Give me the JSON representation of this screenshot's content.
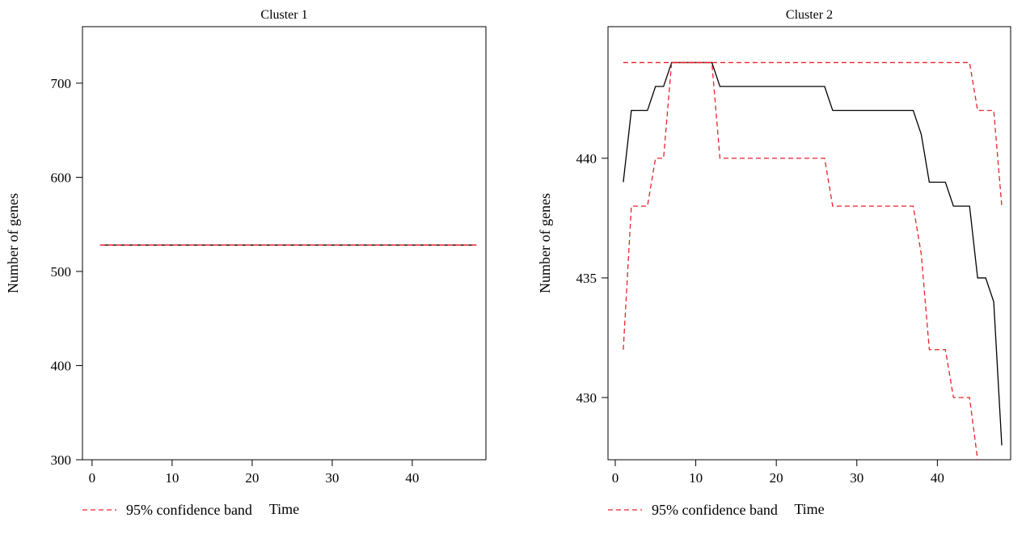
{
  "chart_data": [
    {
      "type": "line",
      "title": "Cluster 1",
      "xlabel": "Time",
      "ylabel": "Number of genes",
      "xlim": [
        -1.2,
        49.2
      ],
      "ylim": [
        300,
        760
      ],
      "xticks": [
        0,
        10,
        20,
        30,
        40
      ],
      "yticks": [
        300,
        400,
        500,
        600,
        700
      ],
      "grid": false,
      "legend": {
        "position": "bottom-left",
        "entries": [
          {
            "label": "95% confidence band",
            "style": "dashed",
            "color": "#e8202a"
          }
        ]
      },
      "series": [
        {
          "role": "estimate",
          "color": "#000000",
          "style": "solid",
          "x": [
            1,
            48
          ],
          "y": [
            528,
            528
          ]
        },
        {
          "role": "band-upper",
          "color": "#e8202a",
          "style": "dashed",
          "x": [
            1,
            48
          ],
          "y": [
            528,
            528
          ]
        },
        {
          "role": "band-lower",
          "color": "#e8202a",
          "style": "dashed",
          "x": [
            1,
            48
          ],
          "y": [
            528,
            528
          ]
        }
      ]
    },
    {
      "type": "line",
      "title": "Cluster 2",
      "xlabel": "Time",
      "ylabel": "Number of genes",
      "xlim": [
        -0.9,
        49.1
      ],
      "ylim": [
        427.4,
        445.5
      ],
      "xticks": [
        0,
        10,
        20,
        30,
        40
      ],
      "yticks": [
        430,
        435,
        440
      ],
      "grid": false,
      "legend": {
        "position": "bottom-left",
        "entries": [
          {
            "label": "95% confidence band",
            "style": "dashed",
            "color": "#e8202a"
          }
        ]
      },
      "series": [
        {
          "role": "estimate",
          "color": "#000000",
          "style": "solid",
          "x": [
            1,
            2,
            3,
            4,
            5,
            6,
            7,
            8,
            9,
            10,
            11,
            12,
            13,
            26,
            27,
            37,
            38,
            39,
            41,
            42,
            44,
            45,
            46,
            47,
            48
          ],
          "y": [
            439,
            442,
            442,
            442,
            443,
            443,
            444,
            444,
            444,
            444,
            444,
            444,
            443,
            443,
            442,
            442,
            441,
            439,
            439,
            438,
            438,
            435,
            435,
            434,
            428
          ]
        },
        {
          "role": "band-upper",
          "color": "#e8202a",
          "style": "dashed",
          "x": [
            1,
            44,
            45,
            47,
            48
          ],
          "y": [
            444,
            444,
            442,
            442,
            438
          ]
        },
        {
          "role": "band-lower",
          "color": "#e8202a",
          "style": "dashed",
          "x": [
            1,
            2,
            4,
            5,
            6,
            7,
            12,
            13,
            26,
            27,
            37,
            38,
            39,
            41,
            42,
            44,
            45
          ],
          "y": [
            432,
            438,
            438,
            440,
            440,
            444,
            444,
            440,
            440,
            438,
            438,
            436,
            432,
            432,
            430,
            430,
            427.4
          ]
        }
      ]
    }
  ]
}
